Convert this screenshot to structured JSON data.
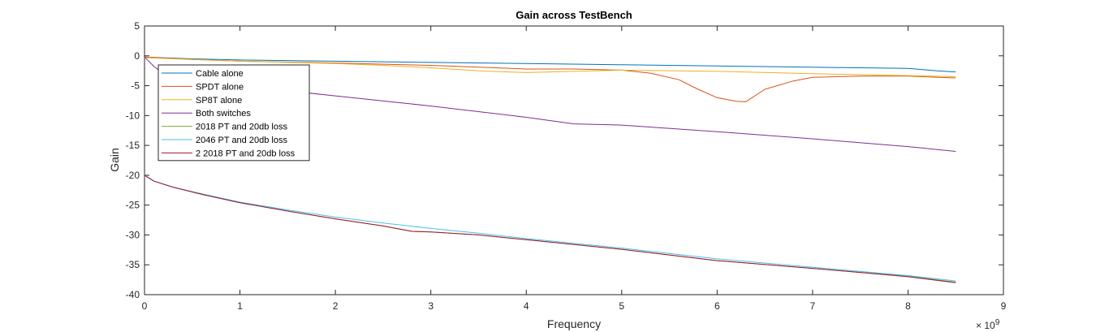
{
  "chart_data": {
    "type": "line",
    "title": "Gain across TestBench",
    "xlabel": "Frequency",
    "ylabel": "Gain",
    "x_multiplier": "× 10",
    "x_multiplier_exp": "9",
    "xlim": [
      0,
      9
    ],
    "ylim": [
      -40,
      5
    ],
    "xticks": [
      0,
      1,
      2,
      3,
      4,
      5,
      6,
      7,
      8,
      9
    ],
    "yticks": [
      5,
      0,
      -5,
      -10,
      -15,
      -20,
      -25,
      -30,
      -35,
      -40
    ],
    "grid": false,
    "legend_position": "top-left",
    "series": [
      {
        "name": "Cable alone",
        "color": "#0072BD",
        "x": [
          0,
          0.5,
          1,
          2,
          3,
          4,
          5,
          6,
          7,
          8,
          8.3,
          8.5
        ],
        "y": [
          -0.2,
          -0.5,
          -0.7,
          -0.9,
          -1.1,
          -1.3,
          -1.5,
          -1.7,
          -1.9,
          -2.1,
          -2.5,
          -2.7
        ]
      },
      {
        "name": "SPDT alone",
        "color": "#D95319",
        "x": [
          0,
          0.5,
          1,
          2,
          3,
          4,
          4.5,
          5,
          5.3,
          5.6,
          5.8,
          6.0,
          6.2,
          6.3,
          6.5,
          6.8,
          7,
          7.5,
          8,
          8.5
        ],
        "y": [
          -0.2,
          -0.6,
          -0.9,
          -1.2,
          -1.6,
          -2.2,
          -2.2,
          -2.4,
          -2.9,
          -4.0,
          -5.6,
          -7.0,
          -7.6,
          -7.7,
          -5.6,
          -4.2,
          -3.6,
          -3.4,
          -3.4,
          -3.7
        ]
      },
      {
        "name": "SP8T alone",
        "color": "#EDB120",
        "x": [
          0,
          0.5,
          1,
          2,
          2.5,
          3,
          3.5,
          4,
          4.5,
          5,
          6,
          7,
          8,
          8.5
        ],
        "y": [
          -0.3,
          -0.6,
          -0.9,
          -1.3,
          -1.6,
          -2.0,
          -2.5,
          -2.8,
          -2.6,
          -2.4,
          -2.6,
          -3.0,
          -3.3,
          -3.5
        ]
      },
      {
        "name": "Both switches",
        "color": "#7E2F8E",
        "x": [
          0,
          0.1,
          0.2,
          0.5,
          1,
          2,
          3,
          4,
          4.5,
          5,
          6,
          7,
          8,
          8.5
        ],
        "y": [
          -0.2,
          -1.8,
          -3.0,
          -4.2,
          -5.0,
          -6.7,
          -8.4,
          -10.3,
          -11.4,
          -11.6,
          -12.7,
          -13.9,
          -15.2,
          -16.0
        ]
      },
      {
        "name": "2018 PT and 20db loss",
        "color": "#77AC30",
        "x": [
          0,
          0.1,
          0.3,
          0.6,
          1,
          1.5,
          2,
          2.5,
          2.8,
          3,
          3.5,
          4,
          5,
          6,
          7,
          8,
          8.5
        ],
        "y": [
          -20.0,
          -21.0,
          -22.0,
          -23.2,
          -24.6,
          -26.0,
          -27.3,
          -28.5,
          -29.4,
          -29.5,
          -30.0,
          -30.8,
          -32.4,
          -34.3,
          -35.6,
          -36.9,
          -37.9
        ]
      },
      {
        "name": "2046 PT and 20db loss",
        "color": "#4DBEEE",
        "x": [
          0,
          0.1,
          0.3,
          0.6,
          1,
          1.5,
          2,
          2.5,
          3,
          3.5,
          4,
          5,
          6,
          7,
          8,
          8.5
        ],
        "y": [
          -20.0,
          -21.0,
          -22.0,
          -23.1,
          -24.5,
          -25.8,
          -27.0,
          -28.0,
          -28.9,
          -29.7,
          -30.6,
          -32.2,
          -34.0,
          -35.4,
          -36.8,
          -37.7
        ]
      },
      {
        "name": "2 2018 PT and 20db loss",
        "color": "#A2142F",
        "x": [
          0,
          0.1,
          0.3,
          0.6,
          1,
          1.5,
          2,
          2.5,
          2.8,
          3,
          3.5,
          4,
          5,
          6,
          7,
          8,
          8.5
        ],
        "y": [
          -20.0,
          -21.0,
          -22.0,
          -23.2,
          -24.6,
          -26.0,
          -27.3,
          -28.5,
          -29.4,
          -29.5,
          -30.0,
          -30.8,
          -32.4,
          -34.3,
          -35.6,
          -37.0,
          -38.0
        ]
      }
    ]
  }
}
